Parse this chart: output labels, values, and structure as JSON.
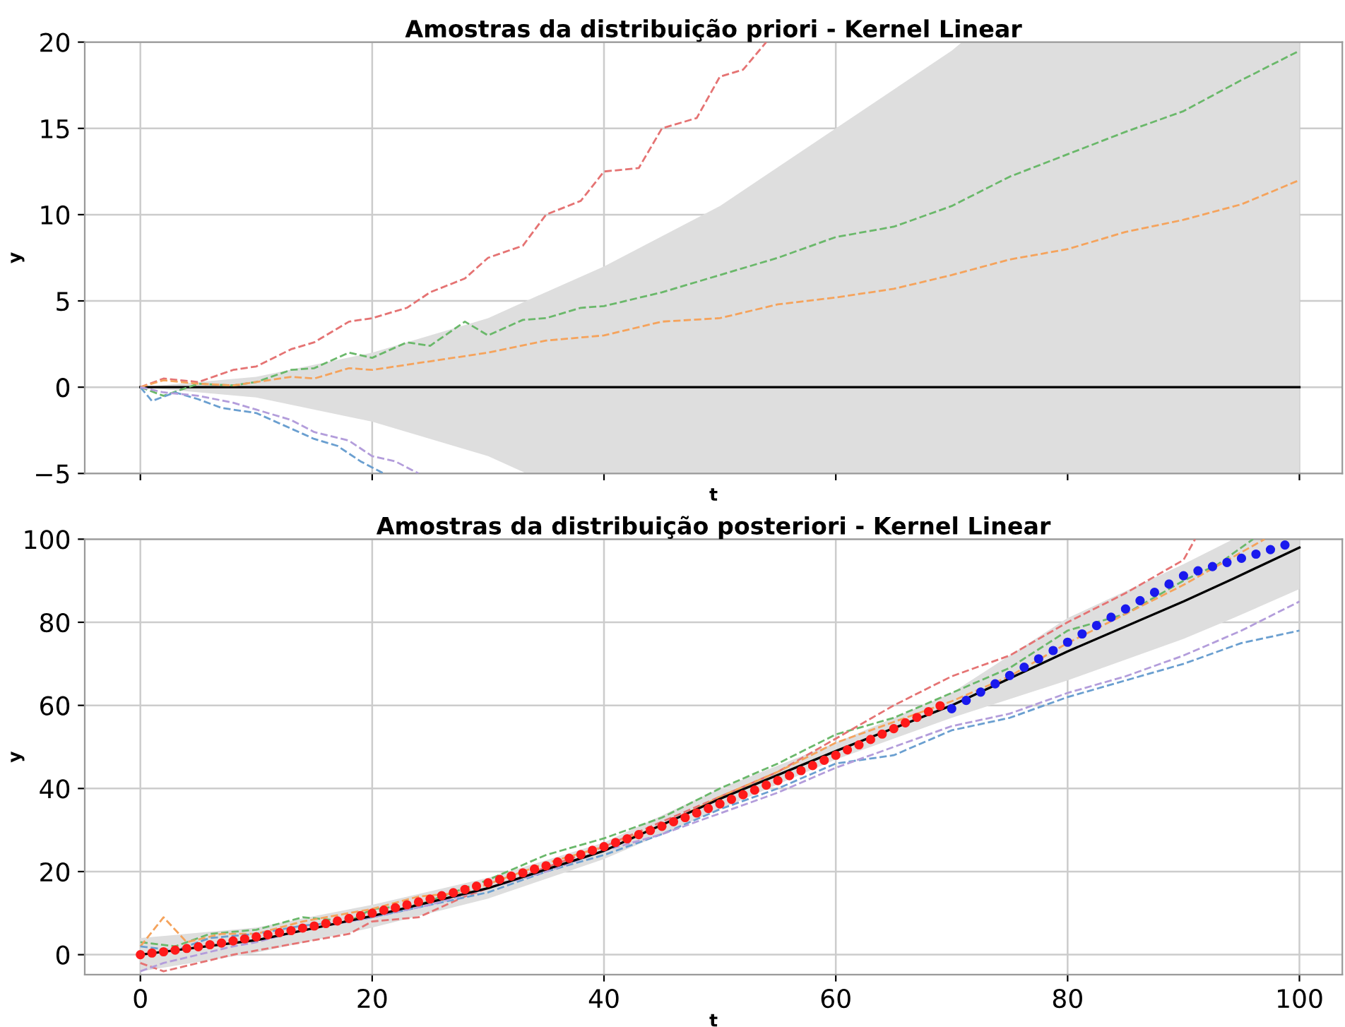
{
  "chart_data": [
    {
      "type": "line",
      "title": "Amostras da distribuição priori - Kernel Linear",
      "xlabel": "t",
      "ylabel": "y",
      "xlim": [
        -4.8,
        103.7
      ],
      "ylim": [
        -5,
        20
      ],
      "xticks": [
        {
          "value": 0,
          "label": null
        },
        {
          "value": 20,
          "label": null
        },
        {
          "value": 40,
          "label": null
        },
        {
          "value": 60,
          "label": null
        },
        {
          "value": 80,
          "label": null
        },
        {
          "value": 100,
          "label": null
        }
      ],
      "yticks": [
        {
          "value": -5,
          "label": "−5"
        },
        0,
        5,
        10,
        15,
        20
      ],
      "tick_labels": "y",
      "grid": true,
      "series": [
        {
          "color": "#000000",
          "line_style": "solid",
          "x": [
            0,
            10,
            20,
            30,
            33.3,
            40,
            50,
            60,
            70,
            70.9,
            80,
            90,
            100
          ],
          "values": [
            0,
            0,
            0,
            0,
            0,
            0,
            0,
            0,
            0,
            0,
            0,
            0,
            0
          ],
          "lower": [
            0,
            -0.6,
            -2,
            -4,
            -5,
            -5,
            -5,
            -5,
            -5,
            -5,
            -5,
            -5,
            -5
          ],
          "upper": [
            0,
            0.6,
            2,
            4,
            5,
            7,
            10.5,
            15,
            19.5,
            20,
            20,
            20,
            20
          ]
        },
        {
          "type": "line",
          "color": "#e57373",
          "line_style": "dashed",
          "x": [
            0,
            2,
            5,
            8,
            10,
            13,
            15,
            18,
            20,
            23,
            25,
            28,
            30,
            33,
            35,
            38,
            40,
            43,
            45,
            48,
            50,
            52,
            54
          ],
          "values": [
            0,
            0.5,
            0.3,
            1,
            1.2,
            2.2,
            2.6,
            3.8,
            4,
            4.6,
            5.5,
            6.3,
            7.5,
            8.2,
            10,
            10.8,
            12.5,
            12.7,
            15,
            15.6,
            18,
            18.4,
            20
          ]
        },
        {
          "type": "line",
          "color": "#6ab86a",
          "line_style": "dashed",
          "x": [
            0,
            2,
            5,
            8,
            10,
            13,
            15,
            18,
            20,
            23,
            25,
            28,
            30,
            33,
            35,
            38,
            40,
            45,
            50,
            55,
            60,
            65,
            70,
            75,
            80,
            85,
            90,
            95,
            100
          ],
          "values": [
            0,
            -0.5,
            0.2,
            0.1,
            0.3,
            1,
            1.1,
            2,
            1.7,
            2.6,
            2.4,
            3.8,
            3,
            3.9,
            4,
            4.6,
            4.7,
            5.5,
            6.5,
            7.5,
            8.7,
            9.3,
            10.5,
            12.2,
            13.5,
            14.8,
            16,
            17.8,
            19.5
          ]
        },
        {
          "type": "line",
          "color": "#f5a35c",
          "line_style": "dashed",
          "x": [
            0,
            2,
            5,
            8,
            10,
            13,
            15,
            18,
            20,
            25,
            30,
            35,
            40,
            45,
            50,
            55,
            60,
            65,
            70,
            75,
            80,
            85,
            90,
            95,
            100
          ],
          "values": [
            0,
            0.4,
            0.2,
            0.1,
            0.3,
            0.6,
            0.5,
            1.1,
            1,
            1.5,
            2,
            2.7,
            3,
            3.8,
            4,
            4.8,
            5.2,
            5.7,
            6.5,
            7.4,
            8,
            9,
            9.7,
            10.6,
            12
          ]
        },
        {
          "type": "line",
          "color": "#6a9fd0",
          "line_style": "dashed",
          "x": [
            0,
            1,
            3,
            5,
            7,
            10,
            12,
            15,
            17,
            19,
            21
          ],
          "values": [
            0,
            -0.8,
            -0.3,
            -0.7,
            -1.2,
            -1.5,
            -2.1,
            -3,
            -3.4,
            -4.3,
            -5
          ]
        },
        {
          "type": "line",
          "color": "#b39ddb",
          "line_style": "dashed",
          "x": [
            0,
            2,
            5,
            8,
            10,
            13,
            15,
            18,
            20,
            22,
            24
          ],
          "values": [
            0,
            -0.3,
            -0.5,
            -0.9,
            -1.3,
            -1.9,
            -2.6,
            -3.1,
            -4,
            -4.3,
            -5
          ]
        }
      ]
    },
    {
      "type": "line",
      "title": "Amostras da distribuição posteriori - Kernel Linear",
      "xlabel": "t",
      "ylabel": "y",
      "xlim": [
        -4.8,
        103.7
      ],
      "ylim": [
        -4.8,
        100
      ],
      "xticks": [
        0,
        20,
        40,
        60,
        80,
        100
      ],
      "yticks": [
        0,
        20,
        40,
        60,
        80,
        100
      ],
      "grid": true,
      "series": [
        {
          "type": "line",
          "color": "#6ab86a",
          "line_style": "dashed",
          "x": [
            0,
            3,
            6,
            10,
            14,
            18,
            20,
            24,
            28,
            30,
            35,
            40,
            45,
            50,
            55,
            60,
            65,
            70,
            75,
            80,
            85,
            90,
            93,
            96
          ],
          "values": [
            3,
            2,
            5,
            6,
            9,
            8,
            11,
            12,
            16,
            18,
            24,
            28,
            33,
            40,
            46,
            53,
            57,
            63,
            69,
            78,
            82,
            90,
            94,
            100
          ]
        },
        {
          "type": "line",
          "color": "#e57373",
          "line_style": "dashed",
          "x": [
            0,
            2,
            5,
            8,
            10,
            14,
            18,
            20,
            24,
            28,
            30,
            35,
            40,
            45,
            50,
            55,
            60,
            65,
            70,
            75,
            80,
            85,
            90,
            91
          ],
          "values": [
            -2,
            -4,
            -2,
            0,
            1,
            3,
            5,
            8,
            9,
            14,
            16,
            21,
            26,
            32,
            38,
            44,
            52,
            60,
            67,
            72,
            80,
            87,
            95,
            100
          ]
        },
        {
          "type": "line",
          "color": "#f5a35c",
          "line_style": "dashed",
          "x": [
            0,
            2,
            4,
            7,
            10,
            14,
            18,
            20,
            24,
            28,
            30,
            35,
            40,
            45,
            50,
            55,
            60,
            65,
            70,
            75,
            80,
            85,
            90,
            97
          ],
          "values": [
            2,
            9,
            3,
            5,
            5,
            8,
            10,
            11,
            14,
            15,
            17,
            22,
            26,
            31,
            38,
            44,
            51,
            56,
            61,
            67,
            75,
            82,
            89,
            100
          ]
        },
        {
          "type": "line",
          "color": "#6a9fd0",
          "line_style": "dashed",
          "x": [
            0,
            3,
            6,
            10,
            14,
            18,
            20,
            25,
            30,
            35,
            40,
            45,
            50,
            55,
            60,
            65,
            70,
            75,
            80,
            85,
            90,
            95,
            100
          ],
          "values": [
            2,
            1,
            4,
            5,
            7,
            8,
            9,
            12,
            15,
            20,
            24,
            29,
            35,
            40,
            46,
            48,
            54,
            57,
            62,
            66,
            70,
            75,
            78
          ]
        },
        {
          "type": "line",
          "color": "#b39ddb",
          "line_style": "dashed",
          "x": [
            0,
            2,
            5,
            8,
            10,
            14,
            18,
            20,
            25,
            30,
            35,
            40,
            45,
            50,
            55,
            60,
            65,
            70,
            75,
            80,
            85,
            90,
            95,
            100
          ],
          "values": [
            -4,
            -2,
            0,
            2,
            3,
            6,
            8,
            9,
            12,
            16,
            20,
            25,
            29,
            34,
            39,
            45,
            50,
            55,
            58,
            63,
            67,
            72,
            78,
            85
          ]
        },
        {
          "color": "#000000",
          "line_style": "solid",
          "x": [
            0,
            10,
            20,
            30,
            40,
            50,
            60,
            70,
            80,
            90,
            94.3,
            100
          ],
          "values": [
            0,
            3.5,
            9.3,
            16,
            25,
            37.5,
            49,
            60,
            73,
            85,
            90.5,
            98
          ],
          "lower": [
            -4,
            0.5,
            6.5,
            13.5,
            23,
            35,
            47,
            57,
            66,
            76,
            81,
            88
          ],
          "upper": [
            4,
            6.5,
            12,
            18.5,
            27,
            40,
            51,
            63,
            81,
            94,
            100,
            100
          ]
        },
        {
          "type": "scatter",
          "color": "#ff1a1a",
          "marker": "circle",
          "x": [
            0,
            1,
            2,
            3,
            4,
            5,
            6,
            7,
            8,
            9,
            10,
            11,
            12,
            13,
            14,
            15,
            16,
            17,
            18,
            19,
            20,
            21,
            22,
            23,
            24,
            25,
            26,
            27,
            28,
            29,
            30,
            31,
            32,
            33,
            34,
            35,
            36,
            37,
            38,
            39,
            40,
            41,
            42,
            43,
            44,
            45,
            46,
            47,
            48,
            49,
            50,
            51,
            52,
            53,
            54,
            55,
            56,
            57,
            58,
            59,
            60,
            61,
            62,
            63,
            64,
            65,
            66,
            67,
            68,
            69
          ],
          "values": [
            0,
            0.4,
            0.7,
            1.1,
            1.5,
            1.9,
            2.4,
            2.8,
            3.3,
            3.8,
            4.3,
            4.8,
            5.3,
            5.8,
            6.4,
            6.9,
            7.5,
            8.1,
            8.7,
            9.4,
            10,
            10.7,
            11.3,
            12,
            12.7,
            13.4,
            14.2,
            14.9,
            15.7,
            16.5,
            17.3,
            18.1,
            18.9,
            19.7,
            20.6,
            21.4,
            22.3,
            23.2,
            24.1,
            25.1,
            26,
            27,
            27.9,
            28.9,
            29.9,
            30.9,
            32,
            33,
            34.1,
            35.2,
            36.3,
            37.4,
            38.5,
            39.6,
            40.8,
            41.9,
            43.1,
            44.3,
            45.5,
            46.8,
            48,
            49.3,
            50.5,
            51.8,
            53.1,
            54.4,
            55.8,
            57.1,
            58.5,
            59.9
          ]
        },
        {
          "type": "scatter",
          "color": "#1a1aee",
          "marker": "circle",
          "x": [
            70,
            71.25,
            72.5,
            73.75,
            75,
            76.25,
            77.5,
            78.75,
            80,
            81.25,
            82.5,
            83.75,
            85,
            86.25,
            87.5,
            88.75,
            90,
            91.25,
            92.5,
            93.75,
            95,
            96.25,
            97.5,
            98.75
          ],
          "values": [
            59.2,
            61.2,
            63.2,
            65.2,
            67.2,
            69.2,
            71.2,
            73.2,
            75.2,
            77.2,
            79.2,
            81.2,
            83.2,
            85.2,
            87.2,
            89.2,
            91.2,
            92.4,
            93.4,
            94.4,
            95.4,
            96.4,
            97.5,
            98.6
          ]
        }
      ]
    }
  ]
}
